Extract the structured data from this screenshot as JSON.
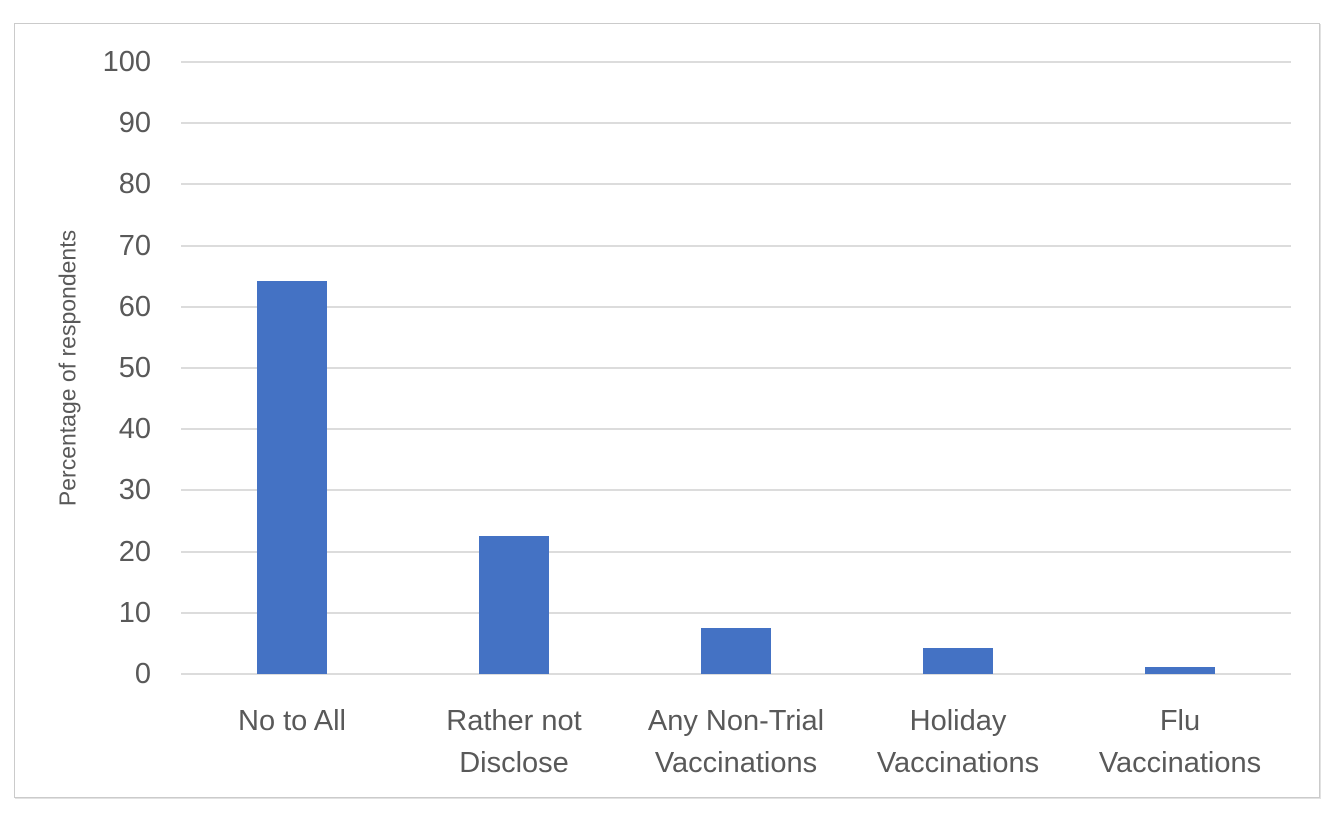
{
  "chart_data": {
    "type": "bar",
    "categories": [
      "No to All",
      "Rather not Disclose",
      "Any Non-Trial Vaccinations",
      "Holiday Vaccinations",
      "Flu Vaccinations"
    ],
    "categories_wrapped": [
      [
        "No to All"
      ],
      [
        "Rather not",
        "Disclose"
      ],
      [
        "Any Non-Trial",
        "Vaccinations"
      ],
      [
        "Holiday",
        "Vaccinations"
      ],
      [
        "Flu",
        "Vaccinations"
      ]
    ],
    "values": [
      64.2,
      22.5,
      7.5,
      4.3,
      1.2
    ],
    "ylabel": "Percentage of respondents",
    "xlabel": "",
    "ylim": [
      0,
      100
    ],
    "yticks": [
      0,
      10,
      20,
      30,
      40,
      50,
      60,
      70,
      80,
      90,
      100
    ],
    "grid": true,
    "legend": false,
    "bar_color": "#4472C4",
    "gridline_color": "#DCDCDC",
    "text_color": "#595959",
    "frame_border_color": "#CBCBCB",
    "background_color": "#FFFFFF"
  }
}
